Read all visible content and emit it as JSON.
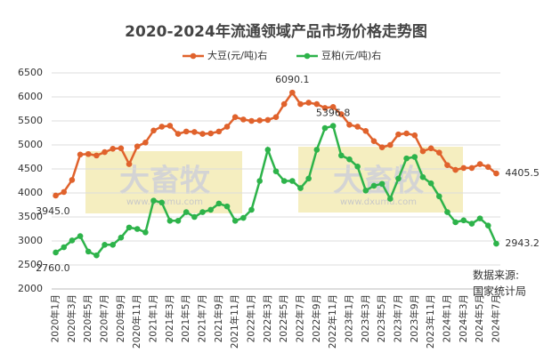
{
  "chart_data": {
    "type": "line",
    "title": "2020-2024年流通领域产品市场价格走势图",
    "categories": [
      "2020年1月",
      null,
      "2020年3月",
      null,
      "2020年5月",
      null,
      "2020年7月",
      null,
      "2020年9月",
      null,
      "2020年11月",
      null,
      "2021年1月",
      null,
      "2021年3月",
      null,
      "2021年5月",
      null,
      "2021年7月",
      null,
      "2021年9月",
      null,
      "2021年11月",
      null,
      "2022年1月",
      null,
      "2022年3月",
      null,
      "2022年5月",
      null,
      "2022年7月",
      null,
      "2022年9月",
      null,
      "2022年11月",
      null,
      "2023年1月",
      null,
      "2023年3月",
      null,
      "2023年5月",
      null,
      "2023年7月",
      null,
      "2023年9月",
      null,
      "2023年11月",
      null,
      "2024年1月",
      null,
      "2024年3月",
      null,
      "2024年5月",
      null,
      "2024年7月"
    ],
    "series": [
      {
        "name": "大豆(元/吨)右",
        "color": "#e0622c",
        "values": [
          3945,
          4020,
          4270,
          4800,
          4810,
          4780,
          4850,
          4920,
          4930,
          4600,
          4970,
          5050,
          5300,
          5380,
          5400,
          5230,
          5280,
          5270,
          5230,
          5240,
          5280,
          5380,
          5580,
          5530,
          5500,
          5510,
          5520,
          5580,
          5850,
          6090.1,
          5850,
          5880,
          5850,
          5770,
          5790,
          5640,
          5420,
          5380,
          5290,
          5080,
          4950,
          5000,
          5220,
          5240,
          5200,
          4870,
          4930,
          4840,
          4580,
          4480,
          4520,
          4520,
          4600,
          4540,
          4405.5
        ],
        "value_labels": [
          "3945.0",
          null,
          null,
          null,
          null,
          null,
          null,
          null,
          null,
          null,
          null,
          null,
          null,
          null,
          null,
          null,
          null,
          null,
          null,
          null,
          null,
          null,
          null,
          null,
          null,
          null,
          null,
          null,
          null,
          "6090.1",
          null,
          null,
          null,
          null,
          null,
          null,
          null,
          null,
          null,
          null,
          null,
          null,
          null,
          null,
          null,
          null,
          null,
          null,
          null,
          null,
          null,
          null,
          null,
          null,
          "4405.5"
        ]
      },
      {
        "name": "豆粕(元/吨)右",
        "color": "#2db34a",
        "values": [
          2760.0,
          2870,
          3010,
          3100,
          2780,
          2700,
          2920,
          2920,
          3070,
          3280,
          3250,
          3180,
          3840,
          3800,
          3420,
          3420,
          3600,
          3500,
          3600,
          3650,
          3780,
          3720,
          3420,
          3480,
          3650,
          4250,
          4900,
          4450,
          4250,
          4250,
          4100,
          4300,
          4900,
          5350,
          5396.8,
          4780,
          4700,
          4550,
          4050,
          4150,
          4190,
          3880,
          4300,
          4720,
          4750,
          4330,
          4200,
          3930,
          3600,
          3390,
          3430,
          3360,
          3470,
          3320,
          2943.2
        ],
        "value_labels": [
          "2760.0",
          null,
          null,
          null,
          null,
          null,
          null,
          null,
          null,
          null,
          null,
          null,
          null,
          null,
          null,
          null,
          null,
          null,
          null,
          null,
          null,
          null,
          null,
          null,
          null,
          null,
          null,
          null,
          null,
          null,
          null,
          null,
          null,
          null,
          "5396.8",
          null,
          null,
          null,
          null,
          null,
          null,
          null,
          null,
          null,
          null,
          null,
          null,
          null,
          null,
          null,
          null,
          null,
          null,
          null,
          "2943.2"
        ]
      }
    ],
    "ylim": [
      2000,
      6500
    ],
    "yticks": [
      2000,
      2500,
      3000,
      3500,
      4000,
      4500,
      5000,
      5500,
      6000,
      6500
    ],
    "grid": true,
    "source": [
      "数据来源:",
      "国家统计局"
    ],
    "watermark": [
      "大畜牧",
      "www.dxumu.com"
    ]
  }
}
